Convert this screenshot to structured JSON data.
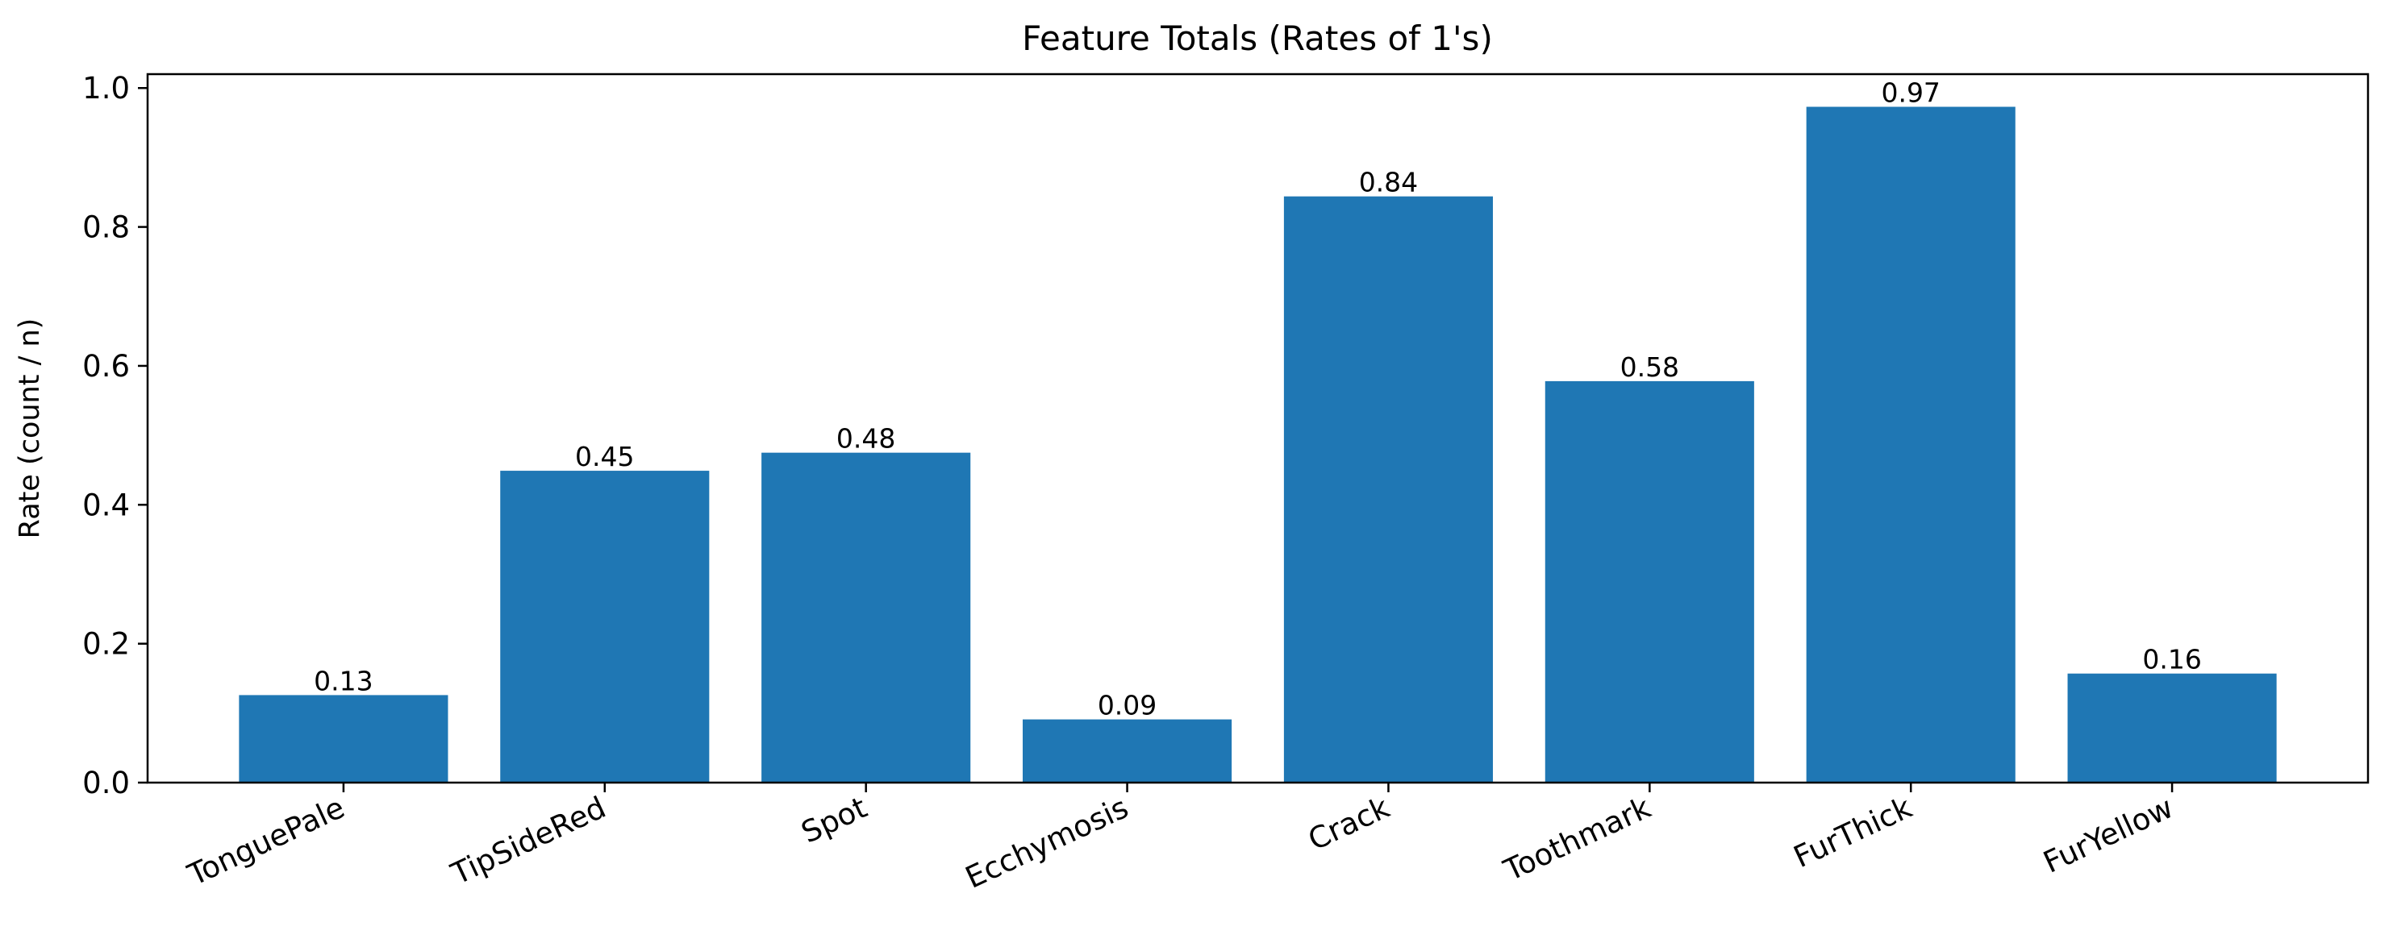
{
  "chart_data": {
    "type": "bar",
    "title": "Feature Totals (Rates of 1's)",
    "xlabel": "",
    "ylabel": "Rate (count / n)",
    "categories": [
      "TonguePale",
      "TipSideRed",
      "Spot",
      "Ecchymosis",
      "Crack",
      "Toothmark",
      "FurThick",
      "FurYellow"
    ],
    "values": [
      0.126,
      0.449,
      0.475,
      0.091,
      0.844,
      0.578,
      0.973,
      0.157
    ],
    "data_labels": [
      "0.13",
      "0.45",
      "0.48",
      "0.09",
      "0.84",
      "0.58",
      "0.97",
      "0.16"
    ],
    "ylim": [
      0,
      1.02
    ],
    "yticks": [
      0.0,
      0.2,
      0.4,
      0.6,
      0.8,
      1.0
    ],
    "ytick_labels": [
      "0.0",
      "0.2",
      "0.4",
      "0.6",
      "0.8",
      "1.0"
    ],
    "grid": false,
    "legend": "none",
    "bar_color": "#1f77b4"
  }
}
